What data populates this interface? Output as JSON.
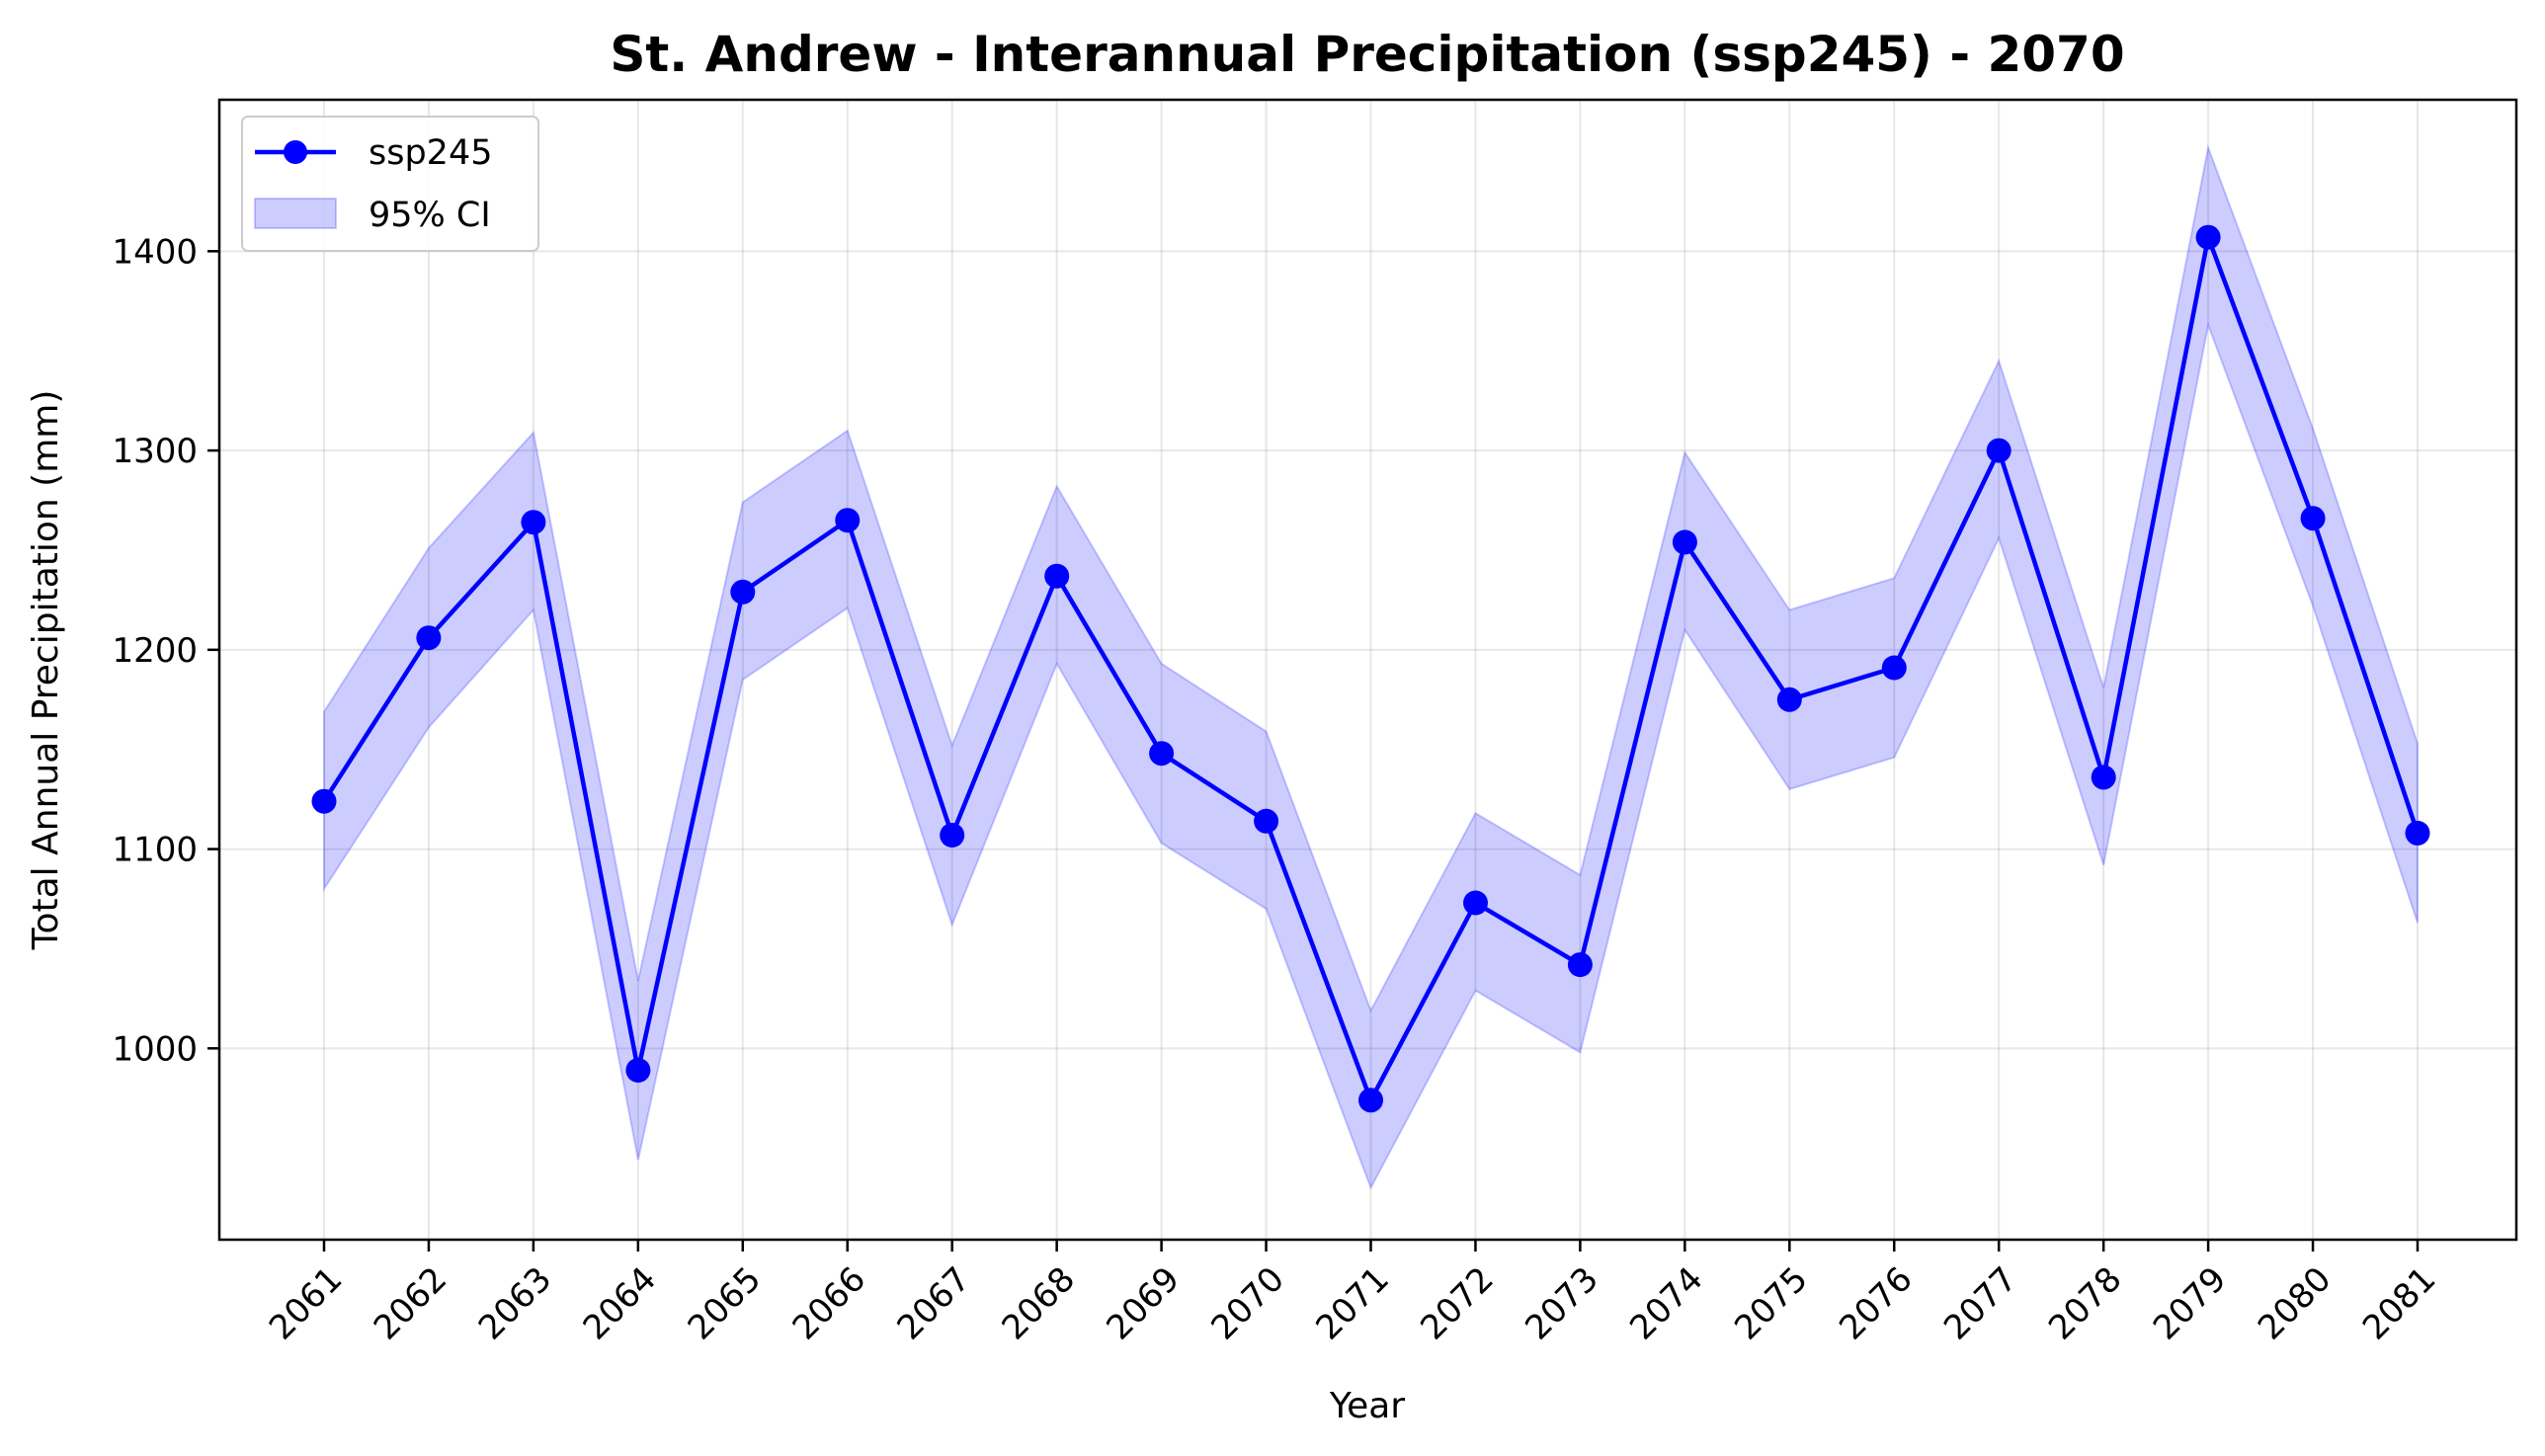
{
  "chart_data": {
    "type": "line",
    "title": "St. Andrew - Interannual Precipitation (ssp245) - 2070",
    "xlabel": "Year",
    "ylabel": "Total Annual Precipitation (mm)",
    "x": [
      "2061",
      "2062",
      "2063",
      "2064",
      "2065",
      "2066",
      "2067",
      "2068",
      "2069",
      "2070",
      "2071",
      "2072",
      "2073",
      "2074",
      "2075",
      "2076",
      "2077",
      "2078",
      "2079",
      "2080",
      "2081"
    ],
    "y_ticks": [
      "1000",
      "1100",
      "1200",
      "1300",
      "1400"
    ],
    "ylim": [
      904,
      1476
    ],
    "grid": true,
    "legend_position": "top-left",
    "series": [
      {
        "name": "ssp245",
        "color": "#0000ff",
        "marker": "circle",
        "values": [
          1124,
          1206,
          1264,
          989,
          1229,
          1265,
          1107,
          1237,
          1148,
          1114,
          974,
          1073,
          1042,
          1254,
          1175,
          1191,
          1300,
          1136,
          1407,
          1266,
          1108
        ]
      }
    ],
    "band": {
      "name": "95% CI",
      "color": "#0000ff",
      "fill_opacity": 0.2,
      "lower": [
        1080,
        1161,
        1220,
        944,
        1185,
        1221,
        1062,
        1193,
        1103,
        1070,
        930,
        1029,
        998,
        1210,
        1130,
        1146,
        1256,
        1092,
        1363,
        1222,
        1063
      ],
      "upper": [
        1169,
        1251,
        1309,
        1034,
        1274,
        1310,
        1152,
        1282,
        1193,
        1159,
        1019,
        1118,
        1087,
        1299,
        1220,
        1236,
        1345,
        1181,
        1452,
        1311,
        1153
      ]
    }
  }
}
